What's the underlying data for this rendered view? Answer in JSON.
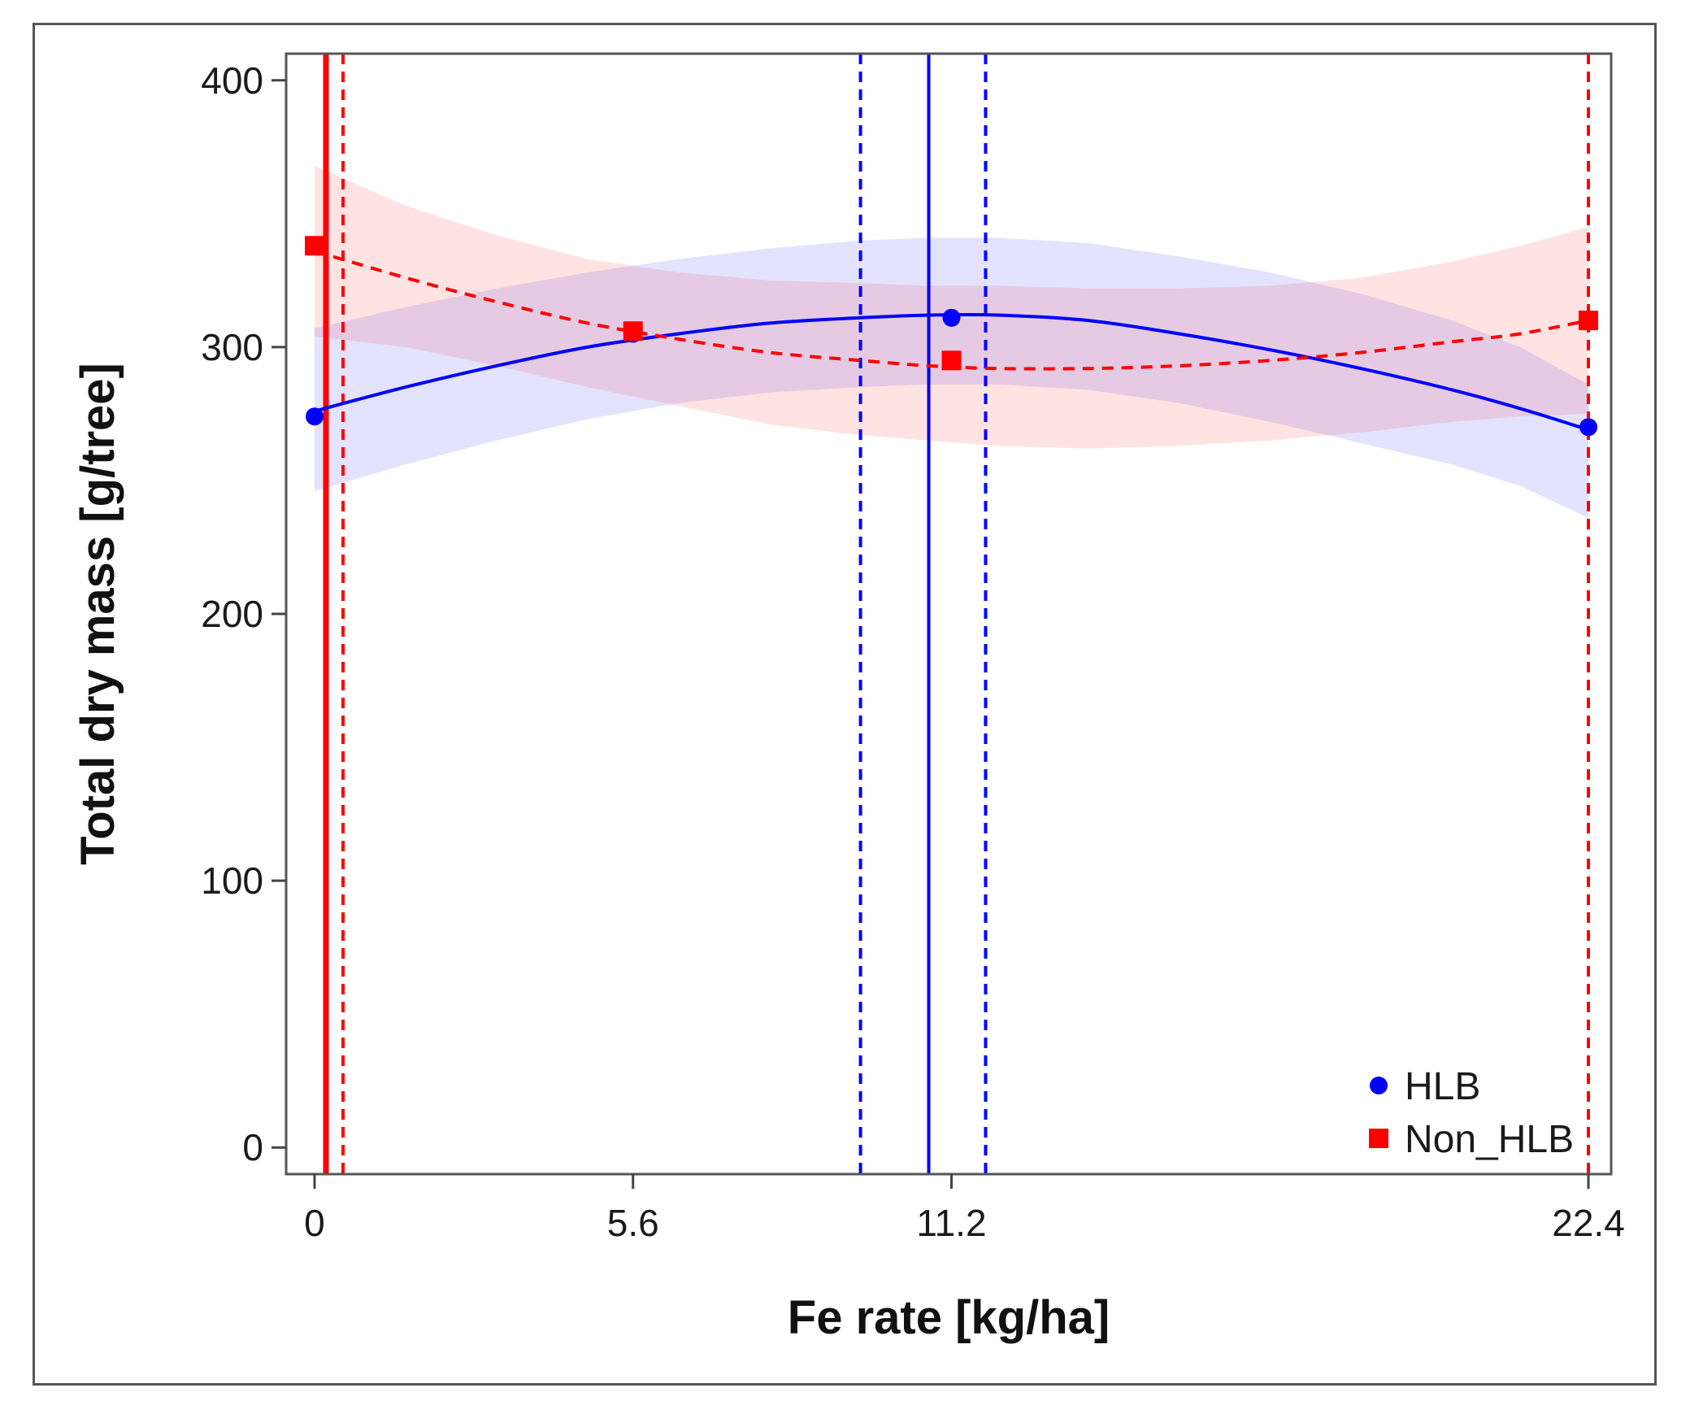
{
  "chart_data": {
    "type": "scatter",
    "title": "",
    "xlabel": "Fe rate [kg/ha]",
    "ylabel": "Total dry mass [g/tree]",
    "xlim": [
      -0.5,
      22.8
    ],
    "ylim": [
      -10,
      410
    ],
    "x_ticks": [
      0,
      5.6,
      11.2,
      22.4
    ],
    "x_tick_labels": [
      "0",
      "5.6",
      "11.2",
      "22.4"
    ],
    "y_ticks": [
      0,
      100,
      200,
      300,
      400
    ],
    "y_tick_labels": [
      "0",
      "100",
      "200",
      "300",
      "400"
    ],
    "grid": false,
    "legend_position": "bottom-right",
    "series": [
      {
        "name": "HLB",
        "color": "#0000ff",
        "marker": "circle",
        "points": {
          "x": [
            0,
            5.6,
            11.2,
            22.4
          ],
          "y": [
            274,
            305,
            311,
            270
          ]
        },
        "fit": {
          "style": "solid",
          "x": [
            0,
            1.6,
            3.2,
            4.8,
            6.4,
            8.0,
            9.6,
            10.8,
            12.0,
            13.6,
            15.2,
            16.8,
            18.4,
            20.0,
            21.2,
            22.4
          ],
          "y": [
            276,
            285,
            293,
            300,
            305,
            309,
            311,
            312,
            312,
            310,
            305,
            299,
            292,
            284,
            277,
            269
          ]
        },
        "band_upper": [
          307,
          315,
          322,
          328,
          333,
          337,
          340,
          341,
          341,
          339,
          334,
          328,
          320,
          310,
          300,
          286
        ],
        "band_lower": [
          246,
          256,
          265,
          273,
          279,
          283,
          285,
          286,
          286,
          284,
          279,
          272,
          264,
          256,
          248,
          236
        ],
        "vlines": [
          {
            "x": 10.8,
            "style": "solid"
          },
          {
            "x": 9.6,
            "style": "dashed"
          },
          {
            "x": 11.8,
            "style": "dashed"
          }
        ]
      },
      {
        "name": "Non_HLB",
        "color": "#ff0000",
        "marker": "square",
        "points": {
          "x": [
            0,
            5.6,
            11.2,
            22.4
          ],
          "y": [
            338,
            306,
            295,
            310
          ]
        },
        "fit": {
          "style": "dashed",
          "x": [
            0,
            1.6,
            3.2,
            4.8,
            6.4,
            8.0,
            9.6,
            10.8,
            12.0,
            13.6,
            15.2,
            16.8,
            18.4,
            20.0,
            21.2,
            22.4
          ],
          "y": [
            336,
            326,
            317,
            309,
            303,
            298,
            295,
            293,
            292,
            292,
            293,
            295,
            298,
            302,
            305,
            310
          ]
        },
        "band_upper": [
          368,
          353,
          342,
          333,
          328,
          325,
          324,
          323,
          323,
          322,
          322,
          323,
          326,
          332,
          338,
          345
        ],
        "band_lower": [
          304,
          300,
          293,
          285,
          278,
          271,
          267,
          265,
          263,
          262,
          263,
          265,
          268,
          272,
          274,
          275
        ],
        "vlines": [
          {
            "x": 0.2,
            "style": "solid"
          },
          {
            "x": 0.5,
            "style": "dashed"
          },
          {
            "x": 22.4,
            "style": "dashed"
          }
        ]
      }
    ]
  }
}
